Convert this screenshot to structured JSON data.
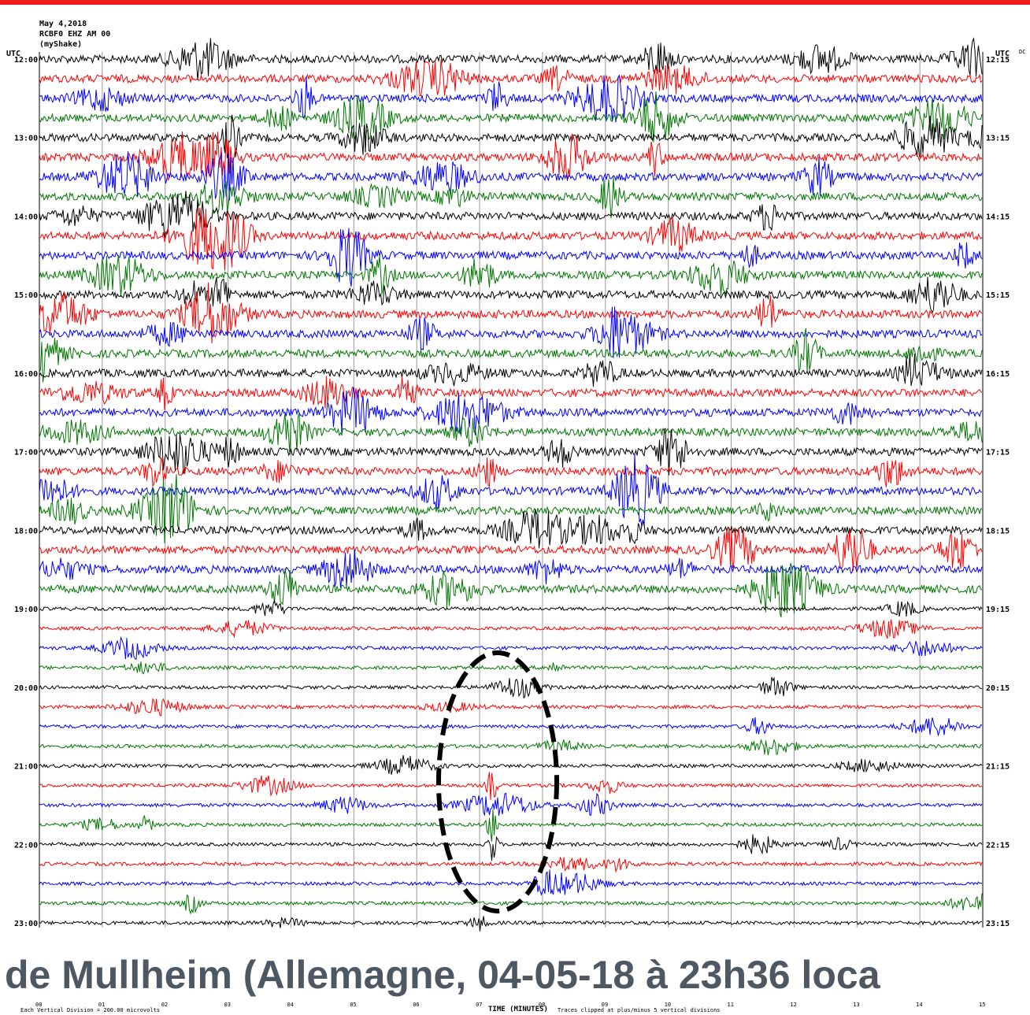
{
  "header": {
    "date": "May 4,2018",
    "station": "RCBF0 EHZ AM 00",
    "network": "(myShake)"
  },
  "axis": {
    "left_title": "UTC",
    "right_title": "UTC",
    "right_extra": "DC",
    "left_labels": [
      "12:00",
      "13:00",
      "14:00",
      "15:00",
      "16:00",
      "17:00",
      "18:00",
      "19:00",
      "20:00",
      "21:00",
      "22:00",
      "23:00"
    ],
    "right_labels": [
      "12:15",
      "13:15",
      "14:15",
      "15:15",
      "16:15",
      "17:15",
      "18:15",
      "19:15",
      "20:15",
      "21:15",
      "22:15",
      "23:15"
    ],
    "minute_labels": [
      "00",
      "01",
      "02",
      "03",
      "04",
      "05",
      "06",
      "07",
      "08",
      "09",
      "10",
      "11",
      "12",
      "13",
      "14",
      "15"
    ]
  },
  "footer": {
    "scale": "Each Vertical Division = 200.00 microvolts",
    "time": "TIME (MINUTES)",
    "clip": "Traces clipped at plus/minus 5 vertical divisions"
  },
  "caption": "de Mullheim (Allemagne, 04-05-18 à 23h36 loca"
}
